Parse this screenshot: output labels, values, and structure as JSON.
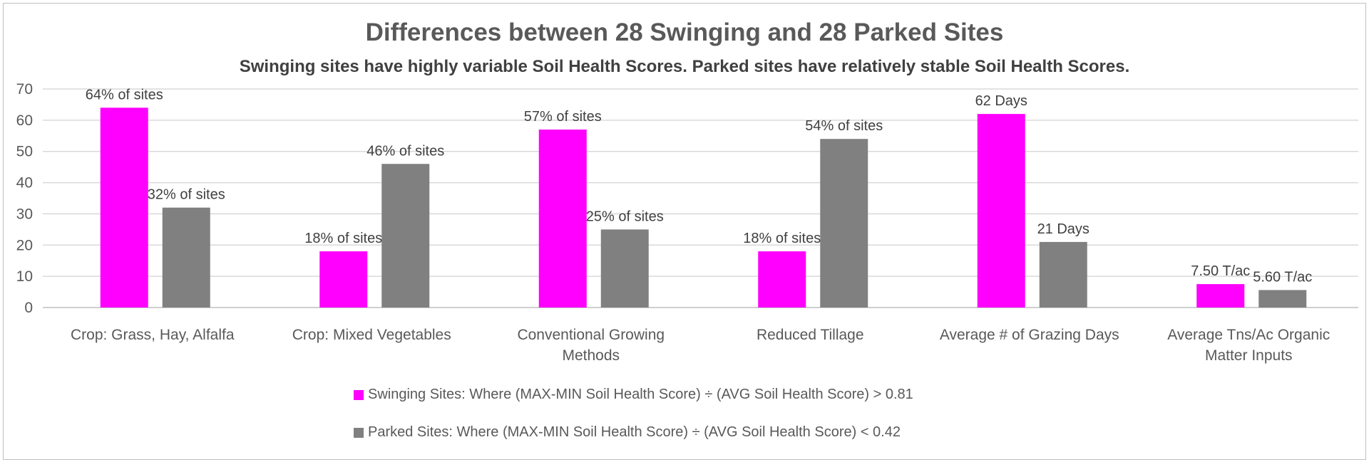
{
  "chart_data": {
    "type": "bar",
    "title": "Differences between 28 Swinging and 28 Parked Sites",
    "subtitle": "Swinging sites have highly variable Soil Health Scores.  Parked sites have relatively stable Soil Health Scores.",
    "categories": [
      [
        "Crop: Grass, Hay, Alfalfa"
      ],
      [
        "Crop: Mixed Vegetables"
      ],
      [
        "Conventional Growing",
        "Methods"
      ],
      [
        "Reduced Tillage"
      ],
      [
        "Average # of Grazing Days"
      ],
      [
        "Average Tns/Ac Organic",
        "Matter Inputs"
      ]
    ],
    "series": [
      {
        "name": "Swinging Sites: Where (MAX-MIN Soil Health Score) ÷ (AVG Soil Health Score) > 0.81",
        "color": "#ff00ff",
        "values": [
          64,
          18,
          57,
          18,
          62,
          7.5
        ],
        "labels": [
          "64% of sites",
          "18% of sites",
          "57% of sites",
          "18% of sites",
          "62 Days",
          "7.50 T/ac"
        ]
      },
      {
        "name": "Parked Sites: Where (MAX-MIN Soil Health Score) ÷ (AVG Soil Health Score) < 0.42",
        "color": "#808080",
        "values": [
          32,
          46,
          25,
          54,
          21,
          5.6
        ],
        "labels": [
          "32% of sites",
          "46% of sites",
          "25% of sites",
          "54% of sites",
          "21 Days",
          "5.60 T/ac"
        ]
      }
    ],
    "ylim": [
      0,
      70
    ],
    "yticks": [
      0,
      10,
      20,
      30,
      40,
      50,
      60,
      70
    ],
    "grid": true,
    "legend_position": "bottom"
  }
}
